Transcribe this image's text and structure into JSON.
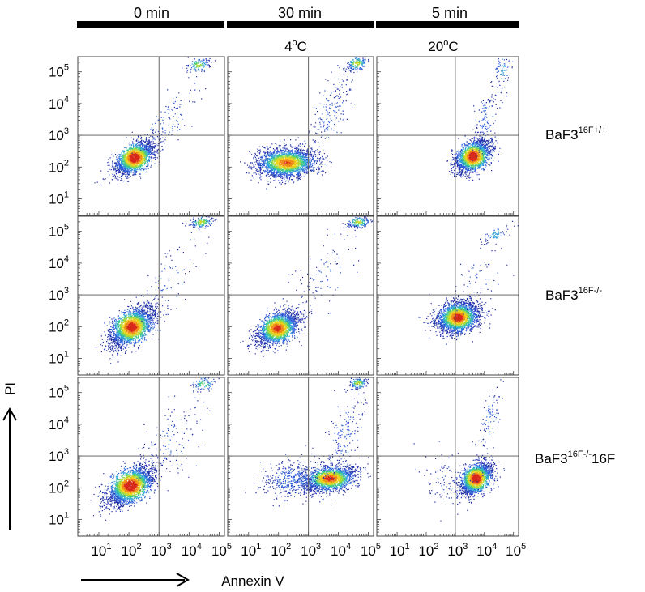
{
  "chart_data": {
    "type": "scatter",
    "description_kind": "flow-cytometry-density-dot-plots",
    "columns": [
      {
        "header": "0 min",
        "condition": ""
      },
      {
        "header": "30 min",
        "condition": "4oC"
      },
      {
        "header": "5 min",
        "condition": "20oC"
      }
    ],
    "rows": [
      {
        "label_base": "BaF3",
        "label_sup": "16F+/+",
        "label_suffix": ""
      },
      {
        "label_base": "BaF3",
        "label_sup": "16F-/-",
        "label_suffix": ""
      },
      {
        "label_base": "BaF3",
        "label_sup": "16F-/-",
        "label_suffix": "16F"
      }
    ],
    "xlabel": "Annexin V",
    "ylabel": "PI",
    "x_scale": "log",
    "y_scale": "log",
    "xlim": [
      2,
      150000
    ],
    "ylim": [
      3,
      300000
    ],
    "gates": {
      "x": 1000,
      "y": 1000
    },
    "x_ticks": [
      {
        "value": 10,
        "base": "10",
        "exp": "1"
      },
      {
        "value": 100,
        "base": "10",
        "exp": "2"
      },
      {
        "value": 1000,
        "base": "10",
        "exp": "3"
      },
      {
        "value": 10000,
        "base": "10",
        "exp": "4"
      },
      {
        "value": 100000,
        "base": "10",
        "exp": "5"
      }
    ],
    "y_ticks": [
      {
        "value": 10,
        "base": "10",
        "exp": "1"
      },
      {
        "value": 100,
        "base": "10",
        "exp": "2"
      },
      {
        "value": 1000,
        "base": "10",
        "exp": "3"
      },
      {
        "value": 10000,
        "base": "10",
        "exp": "4"
      },
      {
        "value": 100000,
        "base": "10",
        "exp": "5"
      }
    ],
    "density_colors": [
      "#1f2fa8",
      "#2a5ad6",
      "#2fa0d8",
      "#3fc98a",
      "#a9d83a",
      "#f0d21e",
      "#f08a18",
      "#d8281a"
    ],
    "panels": [
      {
        "row": 0,
        "col": 0,
        "populations": [
          {
            "cx": 150,
            "cy": 200,
            "sx": 0.32,
            "sy": 0.26,
            "rho": 0.55,
            "n": 2100,
            "peak": 1.0
          },
          {
            "cx": 20000,
            "cy": 170000,
            "sx": 0.2,
            "sy": 0.12,
            "rho": 0.3,
            "n": 130,
            "peak": 0.55
          },
          {
            "cx": 2000,
            "cy": 3000,
            "sx": 0.55,
            "sy": 0.65,
            "rho": 0.8,
            "n": 120,
            "peak": 0.15
          }
        ]
      },
      {
        "row": 0,
        "col": 1,
        "populations": [
          {
            "cx": 180,
            "cy": 140,
            "sx": 0.48,
            "sy": 0.22,
            "rho": 0.1,
            "n": 2400,
            "peak": 0.85
          },
          {
            "cx": 40000,
            "cy": 190000,
            "sx": 0.18,
            "sy": 0.12,
            "rho": 0.4,
            "n": 180,
            "peak": 0.6
          },
          {
            "cx": 5000,
            "cy": 5000,
            "sx": 0.4,
            "sy": 0.7,
            "rho": 0.7,
            "n": 180,
            "peak": 0.15
          }
        ]
      },
      {
        "row": 0,
        "col": 2,
        "populations": [
          {
            "cx": 4000,
            "cy": 220,
            "sx": 0.3,
            "sy": 0.25,
            "rho": 0.45,
            "n": 2100,
            "peak": 1.0
          },
          {
            "cx": 40000,
            "cy": 120000,
            "sx": 0.15,
            "sy": 0.25,
            "rho": 0.5,
            "n": 70,
            "peak": 0.3
          },
          {
            "cx": 10000,
            "cy": 3000,
            "sx": 0.25,
            "sy": 0.6,
            "rho": 0.7,
            "n": 140,
            "peak": 0.15
          }
        ]
      },
      {
        "row": 1,
        "col": 0,
        "populations": [
          {
            "cx": 120,
            "cy": 100,
            "sx": 0.36,
            "sy": 0.3,
            "rho": 0.55,
            "n": 2500,
            "peak": 0.95
          },
          {
            "cx": 25000,
            "cy": 200000,
            "sx": 0.2,
            "sy": 0.1,
            "rho": 0.4,
            "n": 170,
            "peak": 0.6
          },
          {
            "cx": 2000,
            "cy": 3000,
            "sx": 0.6,
            "sy": 0.7,
            "rho": 0.7,
            "n": 90,
            "peak": 0.12
          }
        ]
      },
      {
        "row": 1,
        "col": 1,
        "populations": [
          {
            "cx": 90,
            "cy": 90,
            "sx": 0.34,
            "sy": 0.26,
            "rho": 0.45,
            "n": 2200,
            "peak": 0.9
          },
          {
            "cx": 45000,
            "cy": 200000,
            "sx": 0.18,
            "sy": 0.1,
            "rho": 0.4,
            "n": 180,
            "peak": 0.6
          },
          {
            "cx": 3000,
            "cy": 5000,
            "sx": 0.6,
            "sy": 0.7,
            "rho": 0.6,
            "n": 100,
            "peak": 0.12
          }
        ]
      },
      {
        "row": 1,
        "col": 2,
        "populations": [
          {
            "cx": 1200,
            "cy": 200,
            "sx": 0.35,
            "sy": 0.24,
            "rho": 0.2,
            "n": 2500,
            "peak": 0.95
          },
          {
            "cx": 25000,
            "cy": 80000,
            "sx": 0.25,
            "sy": 0.15,
            "rho": 0.7,
            "n": 70,
            "peak": 0.3
          },
          {
            "cx": 5000,
            "cy": 3000,
            "sx": 0.5,
            "sy": 0.6,
            "rho": 0.5,
            "n": 60,
            "peak": 0.1
          }
        ]
      },
      {
        "row": 2,
        "col": 0,
        "populations": [
          {
            "cx": 110,
            "cy": 120,
            "sx": 0.38,
            "sy": 0.3,
            "rho": 0.55,
            "n": 2500,
            "peak": 1.0
          },
          {
            "cx": 30000,
            "cy": 190000,
            "sx": 0.2,
            "sy": 0.12,
            "rho": 0.4,
            "n": 90,
            "peak": 0.5
          },
          {
            "cx": 2000,
            "cy": 2000,
            "sx": 0.6,
            "sy": 0.75,
            "rho": 0.6,
            "n": 160,
            "peak": 0.12
          }
        ]
      },
      {
        "row": 2,
        "col": 1,
        "populations": [
          {
            "cx": 5000,
            "cy": 200,
            "sx": 0.42,
            "sy": 0.2,
            "rho": 0.3,
            "n": 1900,
            "peak": 0.9
          },
          {
            "cx": 300,
            "cy": 180,
            "sx": 0.5,
            "sy": 0.3,
            "rho": 0.1,
            "n": 450,
            "peak": 0.2
          },
          {
            "cx": 45000,
            "cy": 200000,
            "sx": 0.15,
            "sy": 0.1,
            "rho": 0.4,
            "n": 150,
            "peak": 0.6
          },
          {
            "cx": 15000,
            "cy": 5000,
            "sx": 0.35,
            "sy": 0.7,
            "rho": 0.6,
            "n": 160,
            "peak": 0.15
          }
        ]
      },
      {
        "row": 2,
        "col": 2,
        "populations": [
          {
            "cx": 5000,
            "cy": 200,
            "sx": 0.28,
            "sy": 0.25,
            "rho": 0.5,
            "n": 1900,
            "peak": 1.0
          },
          {
            "cx": 15000,
            "cy": 15000,
            "sx": 0.2,
            "sy": 0.5,
            "rho": 0.6,
            "n": 90,
            "peak": 0.2
          },
          {
            "cx": 800,
            "cy": 200,
            "sx": 0.6,
            "sy": 0.5,
            "rho": 0.2,
            "n": 120,
            "peak": 0.1
          }
        ]
      }
    ]
  }
}
